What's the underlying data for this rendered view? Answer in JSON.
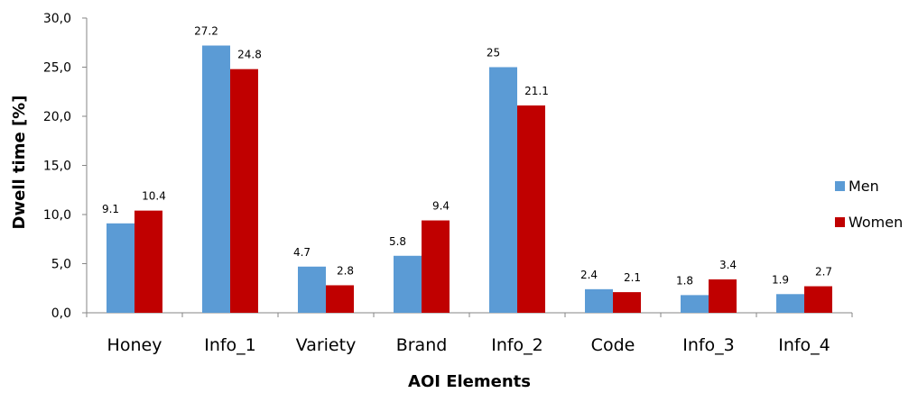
{
  "chart_data": {
    "type": "bar",
    "title": "",
    "xlabel": "AOI Elements",
    "ylabel": "Dwell time [%]",
    "ylim": [
      0,
      30
    ],
    "yticks": [
      "0,0",
      "5,0",
      "10,0",
      "15,0",
      "20,0",
      "25,0",
      "30,0"
    ],
    "categories": [
      "Honey",
      "Info_1",
      "Variety",
      "Brand",
      "Info_2",
      "Code",
      "Info_3",
      "Info_4"
    ],
    "series": [
      {
        "name": "Men",
        "color": "#5B9BD5",
        "values": [
          9.1,
          27.2,
          4.7,
          5.8,
          25,
          2.4,
          1.8,
          1.9
        ],
        "labels": [
          "9.1",
          "27.2",
          "4.7",
          "5.8",
          "25",
          "2.4",
          "1.8",
          "1.9"
        ]
      },
      {
        "name": "Women",
        "color": "#C00000",
        "values": [
          10.4,
          24.8,
          2.8,
          9.4,
          21.1,
          2.1,
          3.4,
          2.7
        ],
        "labels": [
          "10.4",
          "24.8",
          "2.8",
          "9.4",
          "21.1",
          "2.1",
          "3.4",
          "2.7"
        ]
      }
    ],
    "legend": {
      "position": "right"
    },
    "grid": false
  }
}
